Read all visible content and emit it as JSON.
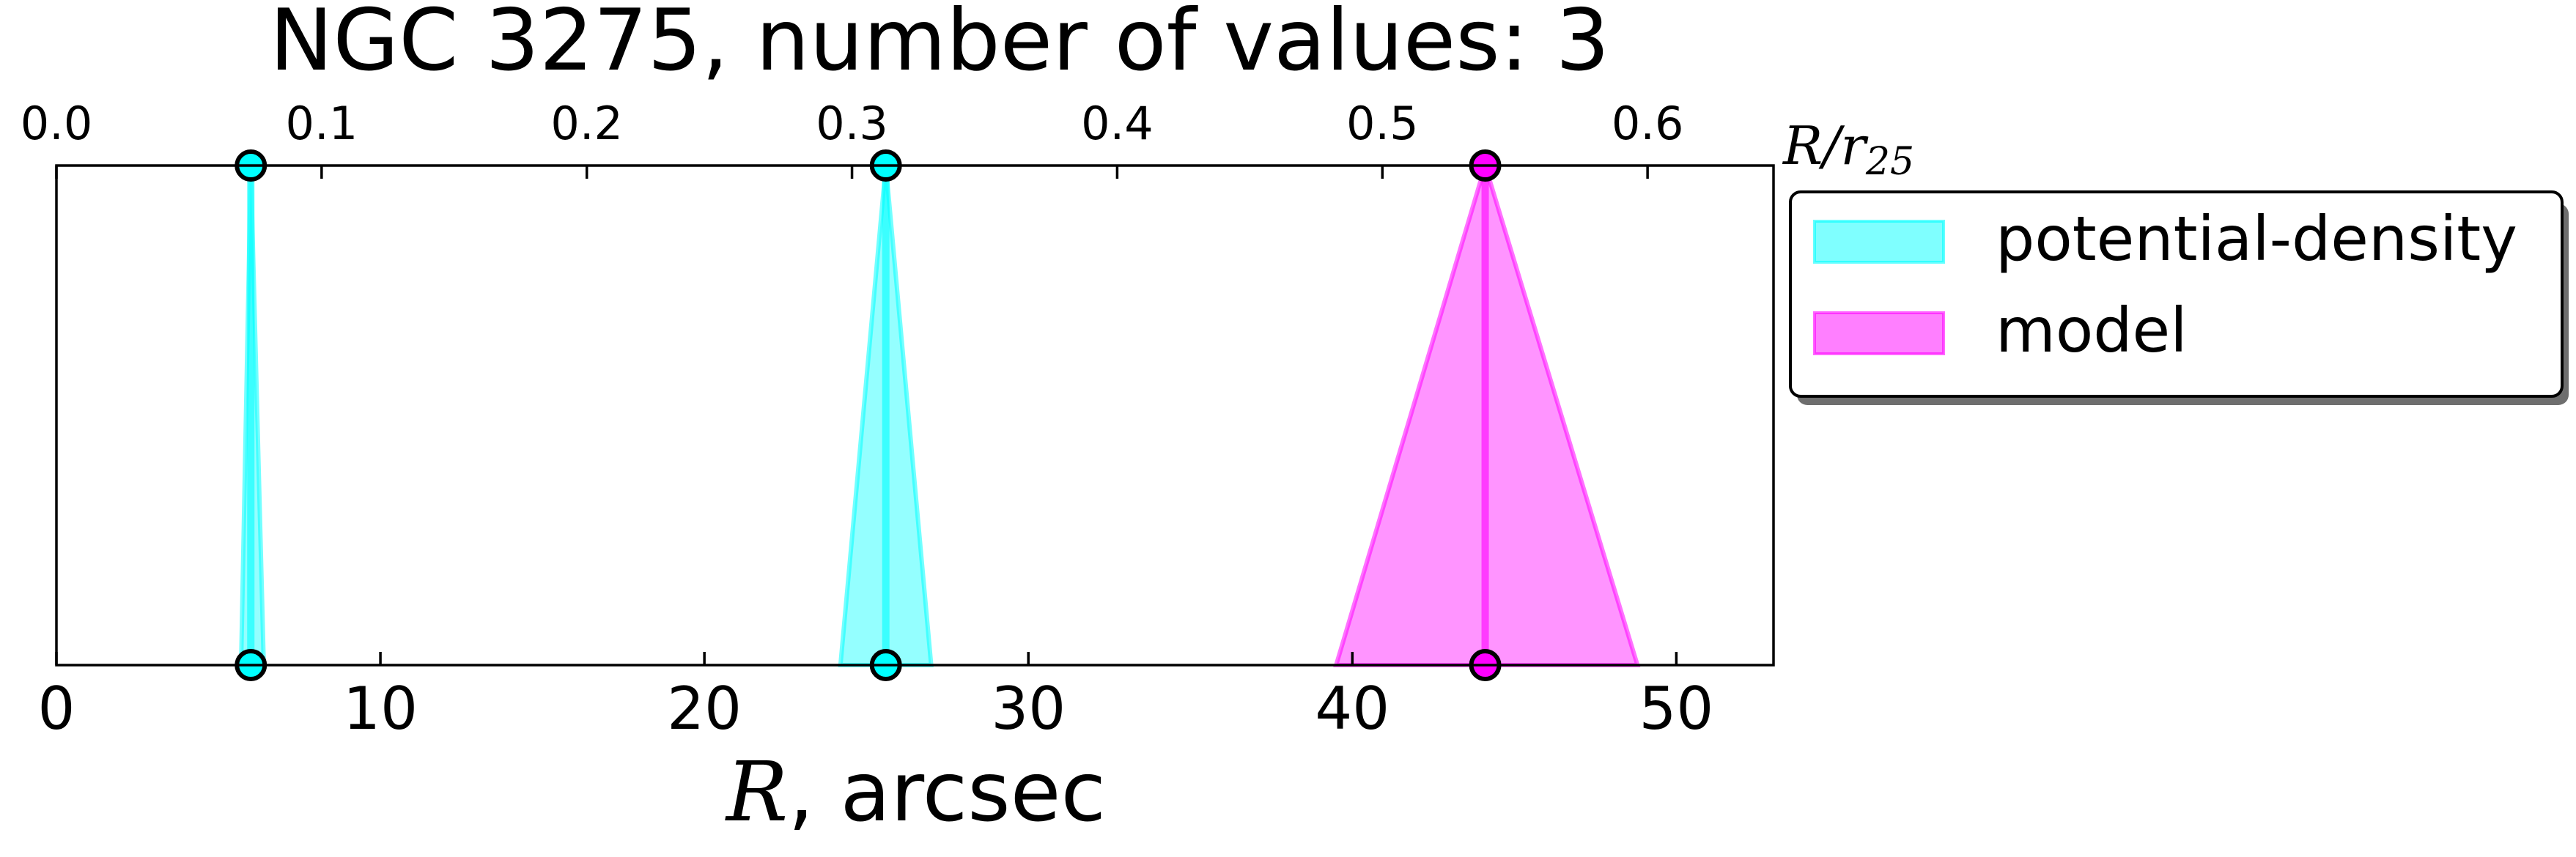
{
  "chart_data": {
    "type": "area",
    "title": "NGC 3275, number of values: 3",
    "xlabel": {
      "italic": "R",
      "rest": ", arcsec"
    },
    "top_xlabel": {
      "base": "R/r",
      "subscript": "25"
    },
    "xlim": [
      0,
      53
    ],
    "top_xlim": [
      0,
      0.6475
    ],
    "xticks": [
      0,
      10,
      20,
      30,
      40,
      50
    ],
    "xtick_labels": [
      "0",
      "10",
      "20",
      "30",
      "40",
      "50"
    ],
    "top_xticks": [
      0.0,
      0.1,
      0.2,
      0.3,
      0.4,
      0.5,
      0.6
    ],
    "top_xtick_labels": [
      "0.0",
      "0.1",
      "0.2",
      "0.3",
      "0.4",
      "0.5",
      "0.6"
    ],
    "legend_position": "outside right, upper",
    "series": [
      {
        "name": "potential-density",
        "color": "#00ffff",
        "triangles": [
          {
            "center": 6.0,
            "left": 5.7,
            "right": 6.4
          },
          {
            "center": 25.6,
            "left": 24.2,
            "right": 27.0
          }
        ]
      },
      {
        "name": "model",
        "color": "#ff00ff",
        "triangles": [
          {
            "center": 44.1,
            "left": 39.5,
            "right": 48.8
          }
        ]
      }
    ]
  }
}
